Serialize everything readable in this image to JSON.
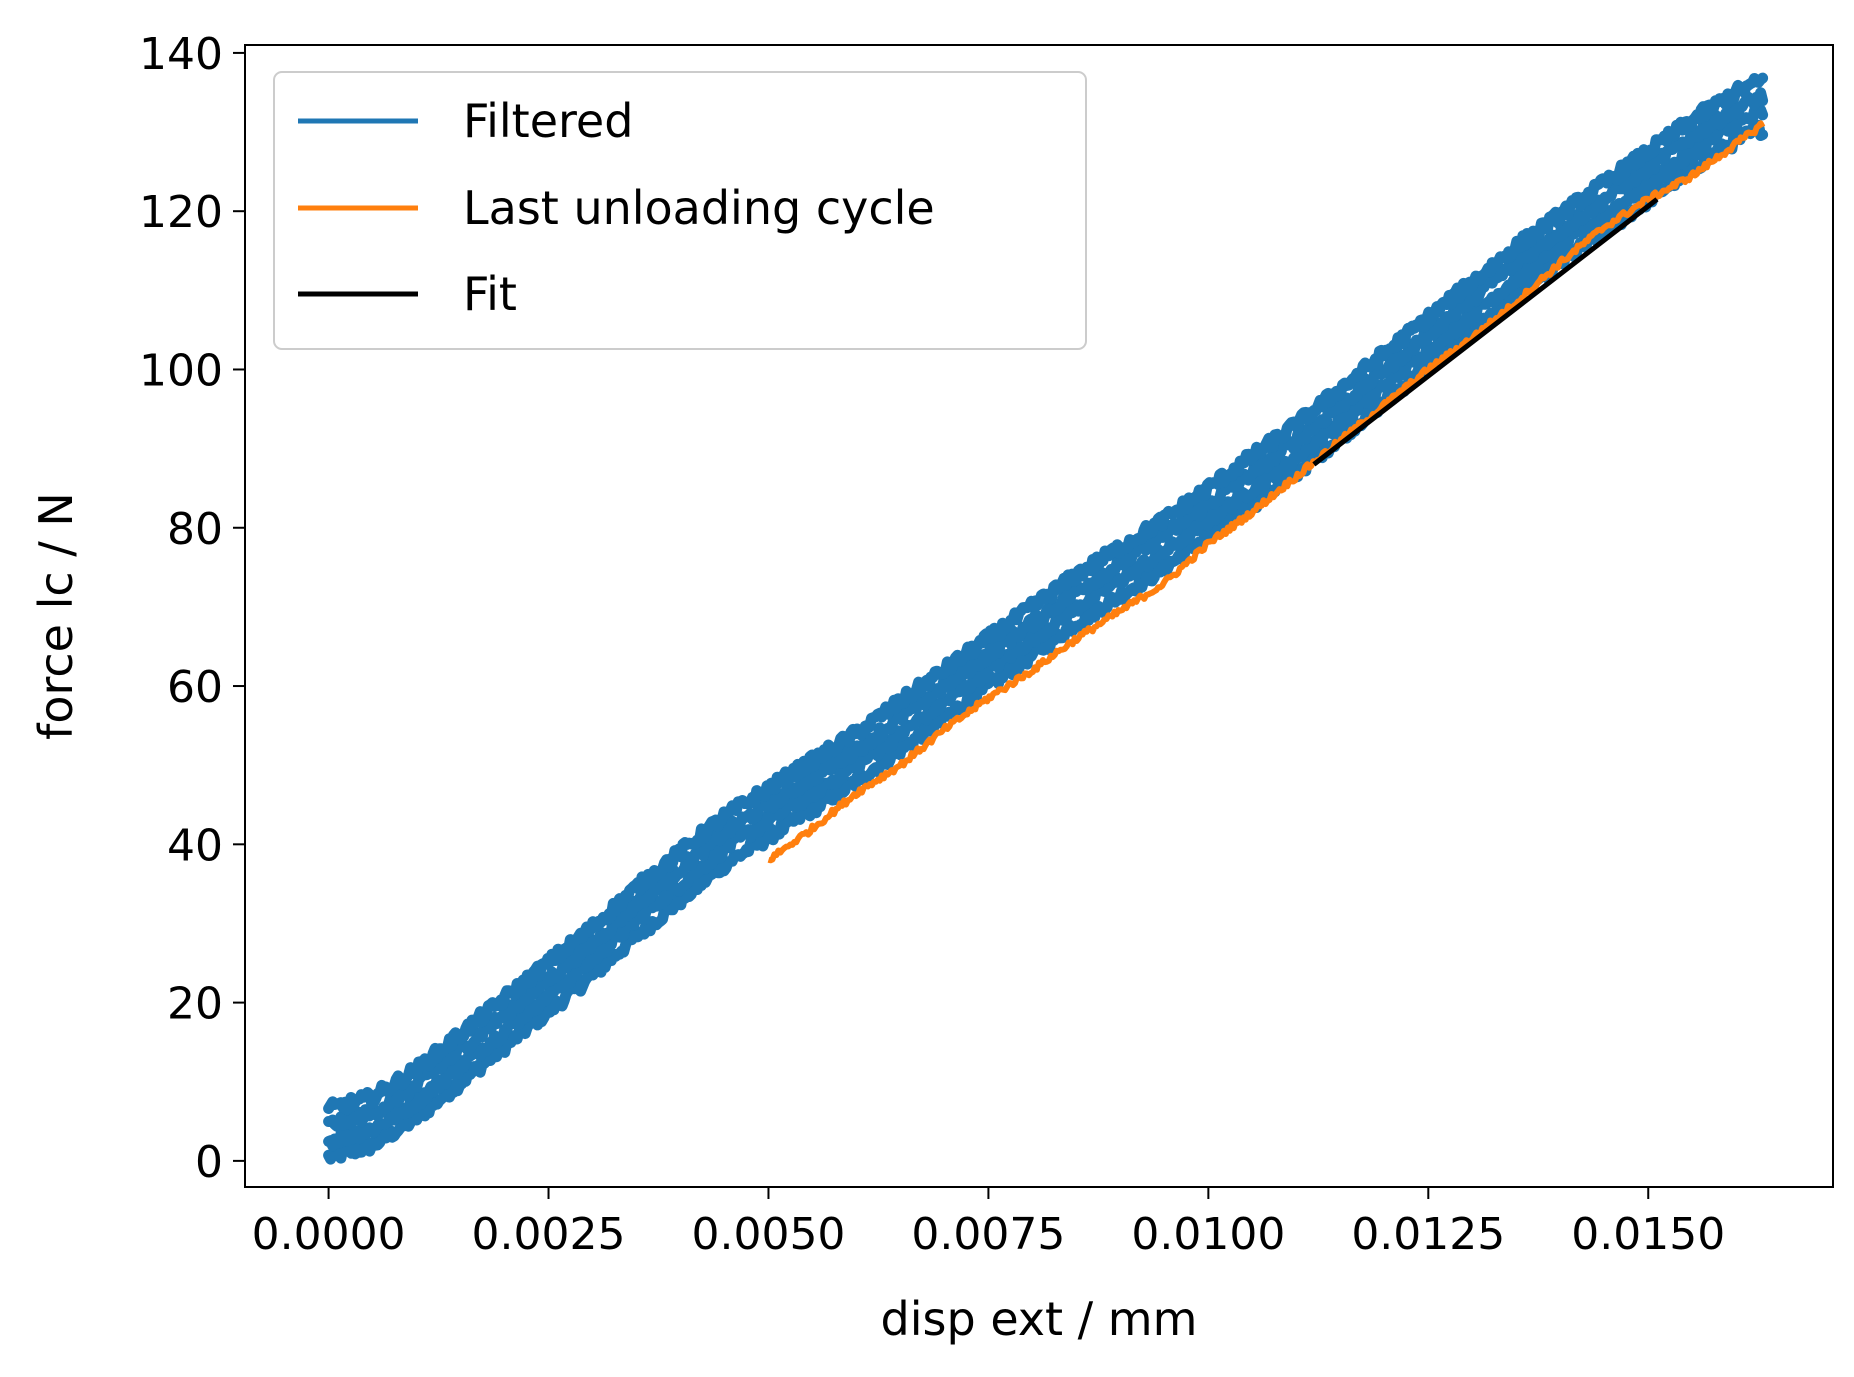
{
  "chart_data": {
    "type": "line",
    "title": "",
    "xlabel": "disp ext / mm",
    "ylabel": "force lc / N",
    "xlim": [
      -0.00095,
      0.0171
    ],
    "ylim": [
      -3.3,
      141.0
    ],
    "xticks": [
      0.0,
      0.0025,
      0.005,
      0.0075,
      0.01,
      0.0125,
      0.015
    ],
    "xtick_labels": [
      "0.0000",
      "0.0025",
      "0.0050",
      "0.0075",
      "0.0100",
      "0.0125",
      "0.0150"
    ],
    "yticks": [
      0,
      20,
      40,
      60,
      80,
      100,
      120,
      140
    ],
    "ytick_labels": [
      "0",
      "20",
      "40",
      "60",
      "80",
      "100",
      "120",
      "140"
    ],
    "grid": false,
    "legend": "top-left",
    "series": [
      {
        "name": "Filtered",
        "color": "#1f77b4",
        "style": "noisy-band",
        "x": [
          0.0,
          0.0005,
          0.001,
          0.0015,
          0.002,
          0.0025,
          0.003,
          0.0035,
          0.004,
          0.0045,
          0.005,
          0.0055,
          0.006,
          0.0065,
          0.007,
          0.0075,
          0.008,
          0.0085,
          0.009,
          0.0095,
          0.01,
          0.0105,
          0.011,
          0.0115,
          0.012,
          0.0125,
          0.013,
          0.0135,
          0.014,
          0.0145,
          0.015,
          0.0155,
          0.016,
          0.0163
        ],
        "y": [
          3.5,
          5.0,
          8.5,
          13.0,
          17.5,
          22.0,
          26.5,
          31.5,
          36.0,
          40.5,
          44.0,
          47.5,
          51.0,
          55.0,
          59.0,
          63.0,
          67.0,
          71.0,
          74.5,
          78.0,
          82.0,
          86.0,
          90.0,
          94.5,
          99.0,
          103.5,
          108.0,
          112.5,
          116.5,
          120.5,
          124.5,
          128.5,
          132.0,
          133.5
        ],
        "band_width": 4.5
      },
      {
        "name": "Last unloading cycle",
        "color": "#ff7f0e",
        "style": "line",
        "x": [
          0.005,
          0.0055,
          0.006,
          0.0065,
          0.007,
          0.0075,
          0.008,
          0.0085,
          0.009,
          0.0095,
          0.01,
          0.0105,
          0.011,
          0.0115,
          0.012,
          0.0125,
          0.013,
          0.0135,
          0.014,
          0.0145,
          0.015,
          0.0155,
          0.016,
          0.0163
        ],
        "y": [
          38.0,
          42.0,
          46.5,
          50.0,
          54.5,
          58.5,
          62.0,
          66.0,
          69.5,
          73.0,
          78.0,
          82.0,
          86.5,
          91.0,
          95.5,
          100.0,
          104.0,
          108.5,
          113.5,
          118.0,
          121.5,
          124.5,
          128.5,
          131.0
        ]
      },
      {
        "name": "Fit",
        "color": "#000000",
        "style": "line",
        "x": [
          0.0112,
          0.0151
        ],
        "y": [
          88.0,
          121.5
        ]
      }
    ]
  }
}
